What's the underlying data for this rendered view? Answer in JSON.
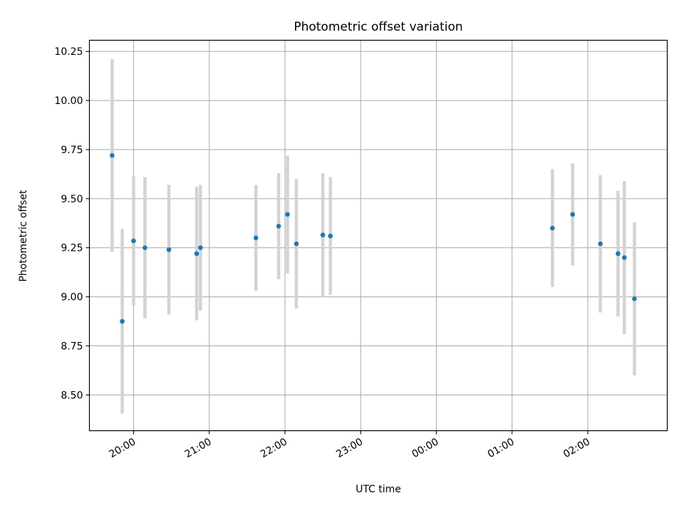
{
  "chart_data": {
    "type": "scatter",
    "title": "Photometric offset variation",
    "xlabel": "UTC time",
    "ylabel": "Photometric offset",
    "grid": true,
    "xlim": [
      "19:25",
      "03:03"
    ],
    "ylim": [
      8.318,
      10.307
    ],
    "xticks": [
      "20:00",
      "21:00",
      "22:00",
      "23:00",
      "00:00",
      "01:00",
      "02:00"
    ],
    "yticks": [
      "8.50",
      "8.75",
      "9.00",
      "9.25",
      "9.50",
      "9.75",
      "10.00",
      "10.25"
    ],
    "marker_color": "#1f77b4",
    "errorbar_color": "#d3d3d3",
    "points": [
      {
        "x": "19:43",
        "y": 9.72,
        "err": 0.49
      },
      {
        "x": "19:51",
        "y": 8.875,
        "err": 0.47
      },
      {
        "x": "20:00",
        "y": 9.285,
        "err": 0.33
      },
      {
        "x": "20:09",
        "y": 9.25,
        "err": 0.36
      },
      {
        "x": "20:28",
        "y": 9.24,
        "err": 0.33
      },
      {
        "x": "20:50",
        "y": 9.22,
        "err": 0.34
      },
      {
        "x": "20:53",
        "y": 9.25,
        "err": 0.32
      },
      {
        "x": "21:37",
        "y": 9.3,
        "err": 0.27
      },
      {
        "x": "21:55",
        "y": 9.36,
        "err": 0.27
      },
      {
        "x": "22:02",
        "y": 9.42,
        "err": 0.3
      },
      {
        "x": "22:09",
        "y": 9.27,
        "err": 0.33
      },
      {
        "x": "22:30",
        "y": 9.315,
        "err": 0.315
      },
      {
        "x": "22:36",
        "y": 9.31,
        "err": 0.3
      },
      {
        "x": "01:32",
        "y": 9.35,
        "err": 0.3
      },
      {
        "x": "01:48",
        "y": 9.42,
        "err": 0.26
      },
      {
        "x": "02:10",
        "y": 9.27,
        "err": 0.35
      },
      {
        "x": "02:24",
        "y": 9.22,
        "err": 0.32
      },
      {
        "x": "02:29",
        "y": 9.2,
        "err": 0.39
      },
      {
        "x": "02:37",
        "y": 8.99,
        "err": 0.39
      }
    ]
  }
}
